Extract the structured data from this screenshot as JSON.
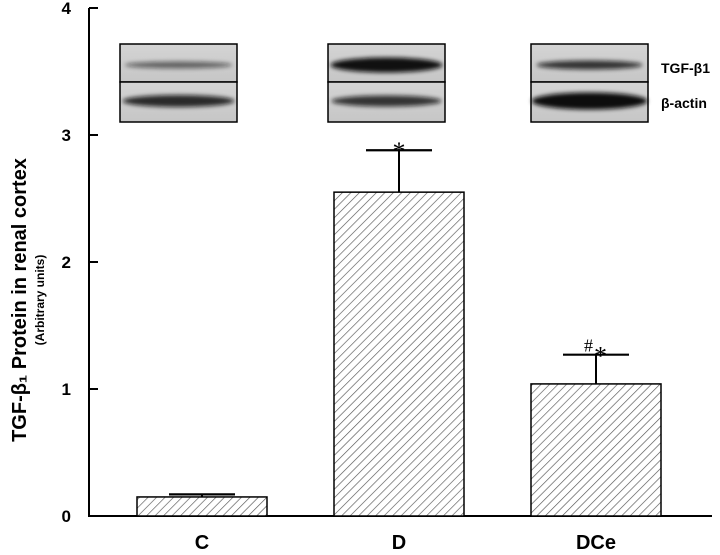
{
  "chart_data": {
    "type": "bar",
    "categories": [
      "C",
      "D",
      "DCe"
    ],
    "values": [
      0.15,
      2.55,
      1.04
    ],
    "errors": [
      0.02,
      0.33,
      0.23
    ],
    "annotations": [
      "",
      "*",
      "#*"
    ],
    "ylabel": "TGF-β₁ Protein in renal cortex",
    "ylabel_sub": "(Arbitrary units)",
    "yticks": [
      "0",
      "1",
      "2",
      "3",
      "4"
    ],
    "ylim": [
      0,
      4
    ],
    "grid": false,
    "bar_pattern": "diagonal-hatch"
  },
  "western_blot": {
    "bands": [
      "TGF-β1",
      "β-actin"
    ]
  }
}
